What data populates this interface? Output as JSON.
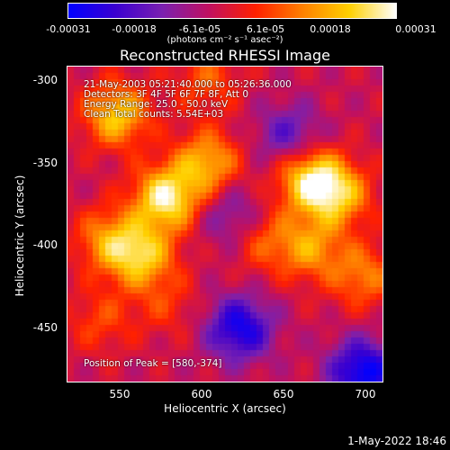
{
  "colorbar": {
    "ticks": [
      "-0.00031",
      "-0.00018",
      "-6.1e-05",
      "6.1e-05",
      "0.00018",
      "0.00031"
    ],
    "units": "(photons cm⁻² s⁻¹ asec⁻²)",
    "colors": [
      "#0000ff",
      "#3a00d0",
      "#7a20b0",
      "#c01060",
      "#ff2000",
      "#ff8000",
      "#ffd000",
      "#ffffff"
    ]
  },
  "plot": {
    "title": "Reconstructed RHESSI Image",
    "xlabel": "Heliocentric X (arcsec)",
    "ylabel": "Heliocentric Y (arcsec)",
    "xticks": [
      "550",
      "600",
      "650",
      "700"
    ],
    "yticks": [
      "-300",
      "-350",
      "-400",
      "-450"
    ],
    "annotations": {
      "time": "21-May-2003 05:21:40.000 to 05:26:36.000",
      "detectors": "Detectors: 3F 4F 5F 6F 7F 8F, Att 0",
      "energy": "Energy Range: 25.0 - 50.0 keV",
      "clean": "Clean     Total counts: 5.54E+03",
      "peak": "Position of Peak = [580,-374]"
    }
  },
  "chart_data": {
    "type": "heatmap",
    "title": "Reconstructed RHESSI Image",
    "xlabel": "Heliocentric X (arcsec)",
    "ylabel": "Heliocentric Y (arcsec)",
    "xlim": [
      520,
      712
    ],
    "ylim": [
      -488,
      -292
    ],
    "value_range": [
      -0.00031,
      0.00031
    ],
    "peak": [
      580,
      -374
    ],
    "hotspots": [
      {
        "x": 550,
        "y": -322,
        "value": 0.00025
      },
      {
        "x": 580,
        "y": -374,
        "value": 0.00031
      },
      {
        "x": 605,
        "y": -352,
        "value": 0.00022
      },
      {
        "x": 545,
        "y": -400,
        "value": 0.00018
      },
      {
        "x": 565,
        "y": -410,
        "value": 0.00024
      },
      {
        "x": 668,
        "y": -362,
        "value": 0.00028
      },
      {
        "x": 685,
        "y": -372,
        "value": 0.00022
      },
      {
        "x": 668,
        "y": -405,
        "value": 0.00018
      },
      {
        "x": 640,
        "y": -400,
        "value": 0.00012
      },
      {
        "x": 700,
        "y": -422,
        "value": 0.00016
      },
      {
        "x": 605,
        "y": -300,
        "value": 0.00012
      },
      {
        "x": 540,
        "y": -450,
        "value": 0.0001
      },
      {
        "x": 580,
        "y": -440,
        "value": 8e-05
      }
    ],
    "coldspots": [
      {
        "x": 625,
        "y": -455,
        "value": -0.00025
      },
      {
        "x": 700,
        "y": -482,
        "value": -0.00028
      },
      {
        "x": 655,
        "y": -335,
        "value": -0.00015
      },
      {
        "x": 620,
        "y": -385,
        "value": -0.00012
      }
    ]
  },
  "timestamp": "1-May-2022 18:46"
}
